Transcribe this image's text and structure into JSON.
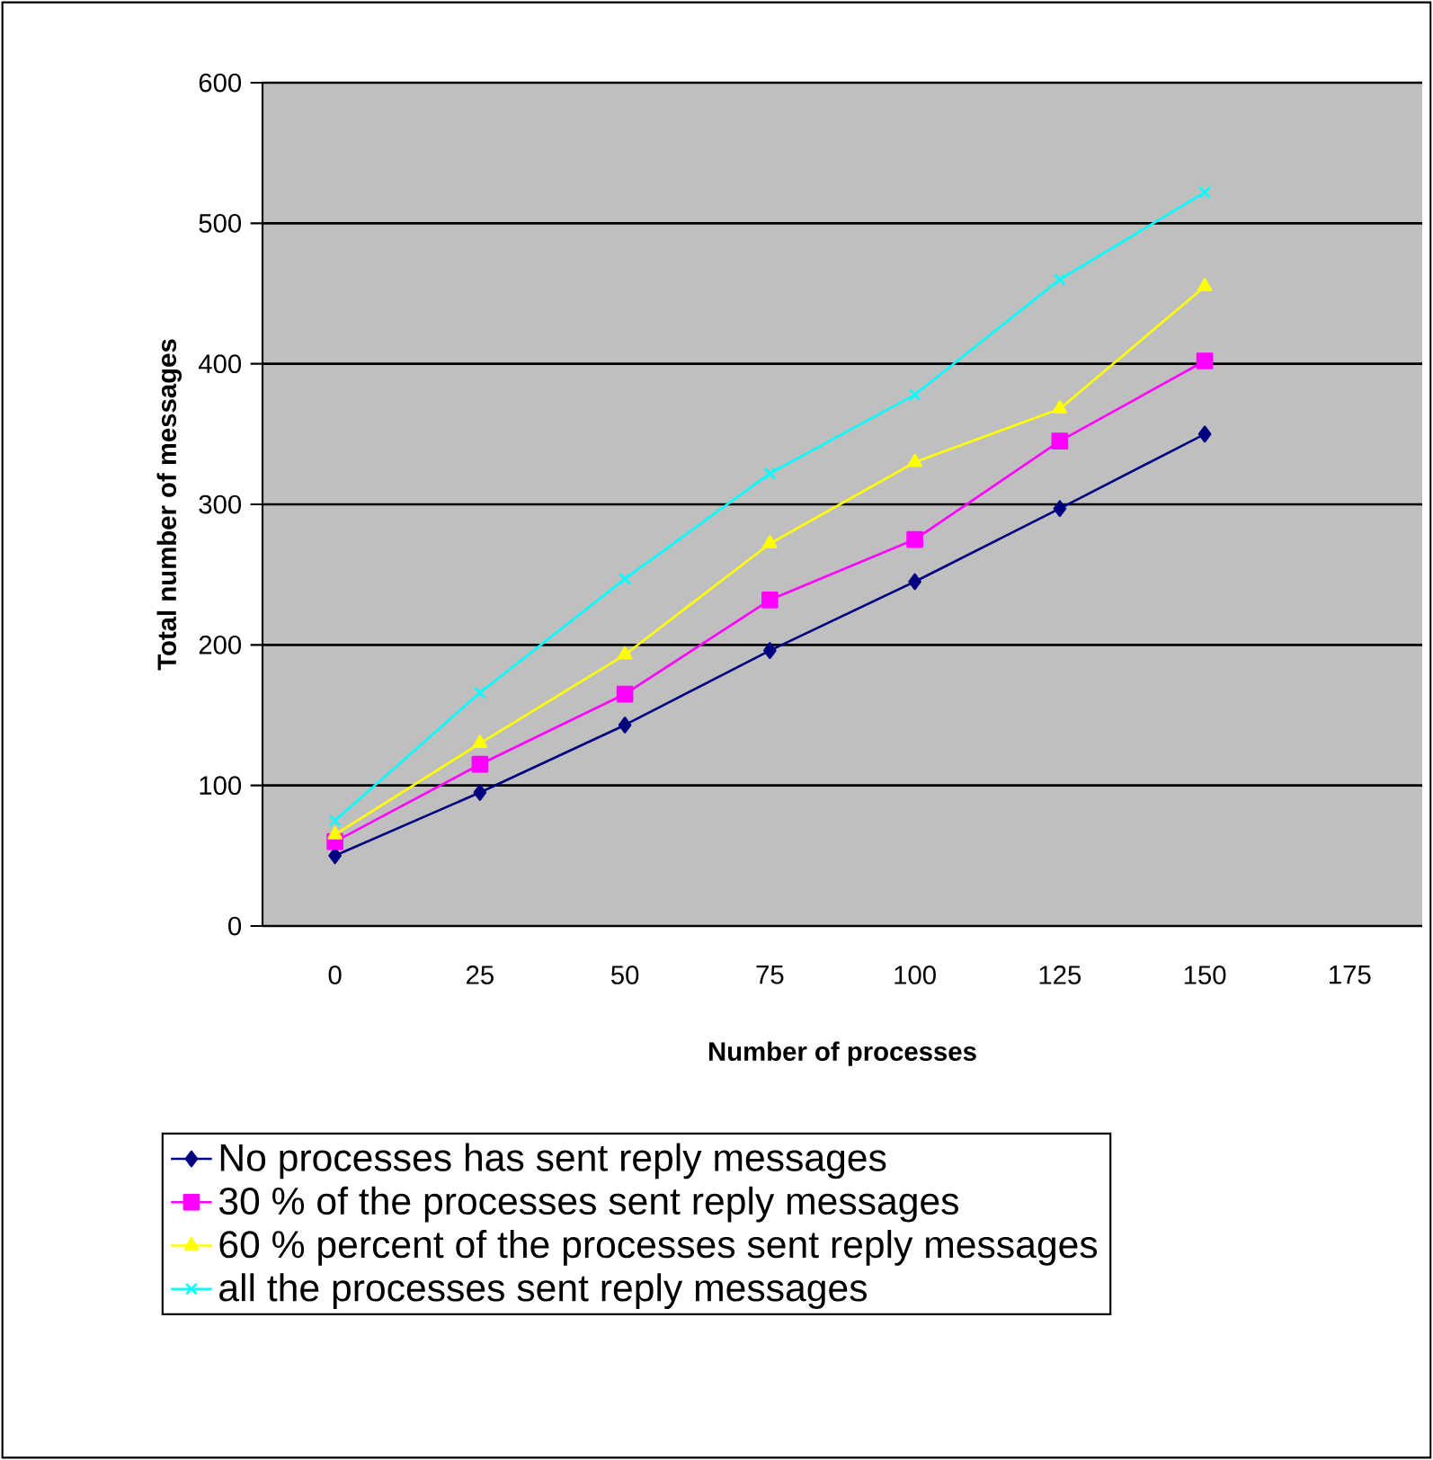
{
  "chart_data": {
    "type": "line",
    "xlabel": "Number of processes",
    "ylabel": "Total number of messages",
    "categories": [
      "0",
      "25",
      "50",
      "75",
      "100",
      "125",
      "150",
      "175"
    ],
    "ylim": [
      0,
      600
    ],
    "yticks": [
      0,
      100,
      200,
      300,
      400,
      500,
      600
    ],
    "grid": "y",
    "legend": "bottom",
    "series": [
      {
        "name": "No processes has sent reply messages",
        "color": "#000080",
        "marker": "diamond",
        "values": [
          50,
          95,
          143,
          196,
          245,
          297,
          350,
          null
        ]
      },
      {
        "name": "30 % of the processes sent reply messages",
        "color": "#ff00ff",
        "marker": "square",
        "values": [
          60,
          115,
          165,
          232,
          275,
          345,
          402,
          null
        ]
      },
      {
        "name": "60 % percent of the processes sent reply messages",
        "color": "#ffff00",
        "marker": "triangle",
        "values": [
          65,
          130,
          193,
          272,
          330,
          368,
          455,
          null
        ]
      },
      {
        "name": "all the processes sent reply messages",
        "color": "#00ffff",
        "marker": "cross",
        "values": [
          75,
          166,
          247,
          322,
          378,
          460,
          522,
          null
        ]
      }
    ]
  }
}
